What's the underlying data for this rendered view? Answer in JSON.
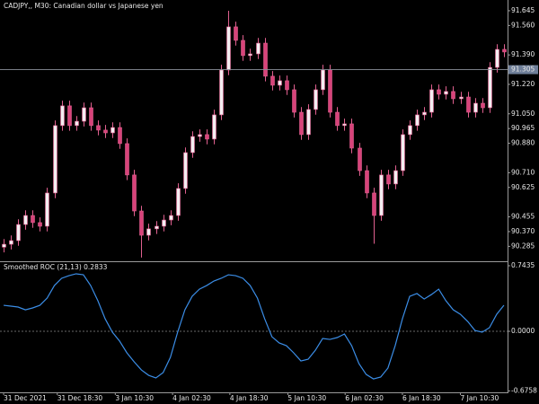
{
  "chart_data": [
    {
      "type": "candlestick",
      "title": "CADJPY,, M30:  Canadian dollar vs Japanese yen",
      "open": [
        90.28,
        90.297,
        90.318,
        90.411,
        90.463,
        90.422,
        90.401,
        90.593,
        90.982,
        91.096,
        90.982,
        91.007,
        91.085,
        90.982,
        90.956,
        90.94,
        90.971,
        90.878,
        90.697,
        90.489,
        90.349,
        90.386,
        90.401,
        90.437,
        90.463,
        90.619,
        90.826,
        90.919,
        90.93,
        90.904,
        91.044,
        91.303,
        91.552,
        91.474,
        91.386,
        91.396,
        91.458,
        91.267,
        91.215,
        91.241,
        91.189,
        91.059,
        90.93,
        91.075,
        91.189,
        91.303,
        91.059,
        90.982,
        90.992,
        90.852,
        90.722,
        90.593,
        90.463,
        90.697,
        90.645,
        90.722,
        90.93,
        90.982,
        91.044,
        91.059,
        91.189,
        91.163,
        91.179,
        91.137,
        91.147,
        91.059,
        91.111,
        91.085,
        91.318,
        91.422
      ],
      "high": [
        90.327,
        90.348,
        90.441,
        90.493,
        90.493,
        90.452,
        90.623,
        91.012,
        91.126,
        91.126,
        91.037,
        91.115,
        91.115,
        91.012,
        90.986,
        91.001,
        91.001,
        90.908,
        90.727,
        90.519,
        90.416,
        90.431,
        90.467,
        90.493,
        90.649,
        90.856,
        90.949,
        90.96,
        90.96,
        91.074,
        91.333,
        91.645,
        91.582,
        91.504,
        91.426,
        91.488,
        91.488,
        91.297,
        91.271,
        91.271,
        91.219,
        91.089,
        91.105,
        91.219,
        91.333,
        91.333,
        91.089,
        91.022,
        91.022,
        90.882,
        90.752,
        90.623,
        90.727,
        90.727,
        90.752,
        90.96,
        91.012,
        91.074,
        91.089,
        91.219,
        91.219,
        91.209,
        91.209,
        91.177,
        91.177,
        91.141,
        91.141,
        91.348,
        91.452,
        91.452
      ],
      "low": [
        90.25,
        90.267,
        90.288,
        90.381,
        90.392,
        90.371,
        90.371,
        90.563,
        90.952,
        90.952,
        90.952,
        90.977,
        90.952,
        90.926,
        90.91,
        90.91,
        90.848,
        90.667,
        90.459,
        90.22,
        90.319,
        90.356,
        90.371,
        90.407,
        90.433,
        90.589,
        90.796,
        90.889,
        90.874,
        90.874,
        91.014,
        91.273,
        91.444,
        91.356,
        91.356,
        91.366,
        91.237,
        91.185,
        91.185,
        91.159,
        91.029,
        90.9,
        90.9,
        91.045,
        91.159,
        91.029,
        90.952,
        90.952,
        90.822,
        90.692,
        90.563,
        90.3,
        90.433,
        90.615,
        90.615,
        90.692,
        90.9,
        90.952,
        91.014,
        91.029,
        91.133,
        91.133,
        91.107,
        91.107,
        91.029,
        91.029,
        91.055,
        91.055,
        91.288,
        91.377
      ],
      "close": [
        90.297,
        90.318,
        90.411,
        90.463,
        90.422,
        90.401,
        90.593,
        90.982,
        91.096,
        90.982,
        91.007,
        91.085,
        90.982,
        90.956,
        90.94,
        90.971,
        90.878,
        90.697,
        90.489,
        90.349,
        90.386,
        90.401,
        90.437,
        90.463,
        90.619,
        90.826,
        90.919,
        90.93,
        90.904,
        91.044,
        91.303,
        91.552,
        91.474,
        91.386,
        91.396,
        91.458,
        91.267,
        91.215,
        91.241,
        91.189,
        91.059,
        90.93,
        91.075,
        91.189,
        91.303,
        91.059,
        90.982,
        90.992,
        90.852,
        90.722,
        90.593,
        90.463,
        90.697,
        90.645,
        90.722,
        90.93,
        90.982,
        91.044,
        91.059,
        91.189,
        91.163,
        91.179,
        91.137,
        91.147,
        91.059,
        91.111,
        91.085,
        91.318,
        91.422,
        91.407
      ],
      "up_color": "#f4eef2",
      "down_color": "#d8437a",
      "wick_color": "#e0608f",
      "current_price": 91.305,
      "xlim": [
        -0.5,
        69.5
      ],
      "ylim": [
        90.204,
        91.707
      ],
      "yticks": [
        91.645,
        {
          "value": 91.56,
          "label": "91.560"
        },
        {
          "value": 91.39,
          "label": "91.390"
        },
        {
          "value": 91.22,
          "label": "91.220"
        },
        {
          "value": 91.05,
          "label": "91.050"
        },
        90.965,
        {
          "value": 90.88,
          "label": "90.880"
        },
        {
          "value": 90.71,
          "label": "90.710"
        },
        90.625,
        90.455,
        {
          "value": 90.37,
          "label": "90.370"
        },
        90.285
      ]
    },
    {
      "type": "line",
      "title": "Smoothed ROC (21,13) 0.2833",
      "series": [
        {
          "color": "#3b8de6",
          "values": [
            0.295,
            0.285,
            0.275,
            0.244,
            0.265,
            0.295,
            0.377,
            0.519,
            0.601,
            0.631,
            0.652,
            0.641,
            0.519,
            0.346,
            0.142,
            -0.01,
            -0.112,
            -0.244,
            -0.346,
            -0.438,
            -0.499,
            -0.529,
            -0.468,
            -0.295,
            -0.01,
            0.244,
            0.397,
            0.478,
            0.519,
            0.57,
            0.601,
            0.641,
            0.631,
            0.601,
            0.519,
            0.377,
            0.142,
            -0.061,
            -0.132,
            -0.163,
            -0.244,
            -0.336,
            -0.316,
            -0.214,
            -0.081,
            -0.092,
            -0.071,
            -0.031,
            -0.163,
            -0.366,
            -0.489,
            -0.54,
            -0.519,
            -0.417,
            -0.163,
            0.142,
            0.397,
            0.428,
            0.366,
            0.417,
            0.478,
            0.346,
            0.244,
            0.193,
            0.112,
            0.01,
            -0.01,
            0.041,
            0.193,
            0.295
          ]
        }
      ],
      "xlim": [
        -0.5,
        69.5
      ],
      "ylim": [
        -0.692,
        0.774
      ],
      "yticks": [
        0.7435,
        {
          "value": 0,
          "label": "0.0000"
        },
        -0.6758
      ],
      "xticks": [
        {
          "value": 0,
          "label": "31 Dec 2021"
        },
        {
          "value": 7.4,
          "label": "31 Dec 18:30"
        },
        {
          "value": 15.4,
          "label": "3 Jan 10:30"
        },
        {
          "value": 23.3,
          "label": "4 Jan 02:30"
        },
        {
          "value": 31.2,
          "label": "4 Jan 18:30"
        },
        {
          "value": 39.2,
          "label": "5 Jan 10:30"
        },
        {
          "value": 47.1,
          "label": "6 Jan 02:30"
        },
        {
          "value": 55,
          "label": "6 Jan 18:30"
        },
        {
          "value": 63,
          "label": "7 Jan 10:30"
        }
      ]
    }
  ]
}
